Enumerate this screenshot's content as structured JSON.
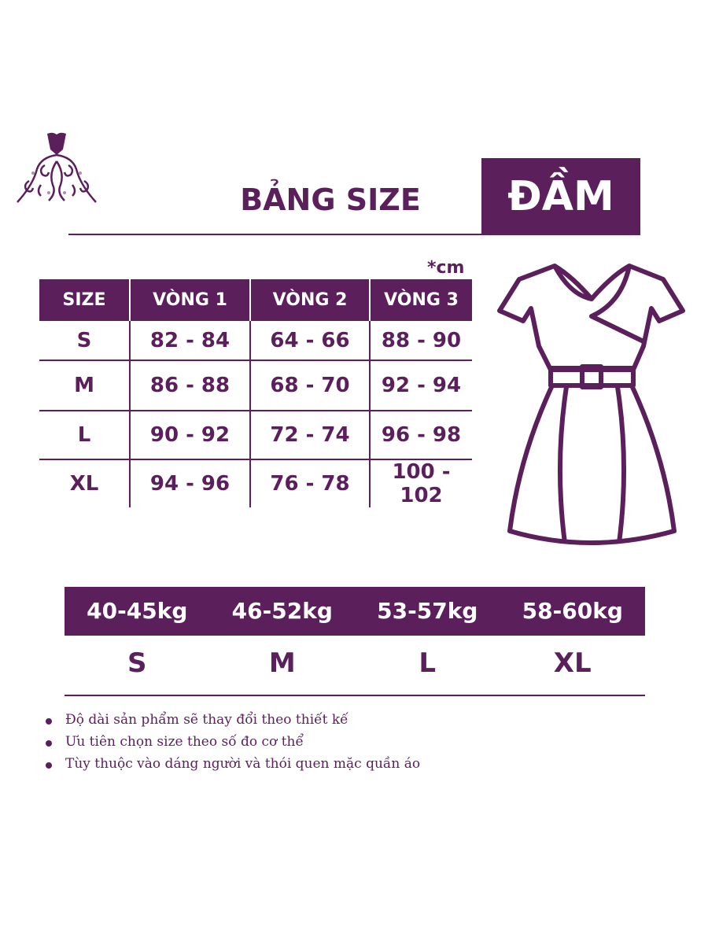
{
  "header": {
    "title": "BẢNG SIZE",
    "product": "ĐẦM",
    "logo_alt": "dress-ornament-logo"
  },
  "unit": "*cm",
  "size_table": {
    "headers": [
      "SIZE",
      "VÒNG 1",
      "VÒNG 2",
      "VÒNG 3"
    ],
    "rows": [
      [
        "S",
        "82 - 84",
        "64 - 66",
        "88 - 90"
      ],
      [
        "M",
        "86 - 88",
        "68 - 70",
        "92 - 94"
      ],
      [
        "L",
        "90 - 92",
        "72 - 74",
        "96 - 98"
      ],
      [
        "XL",
        "94 - 96",
        "76 - 78",
        "100 - 102"
      ]
    ]
  },
  "weight_table": {
    "weights": [
      "40-45kg",
      "46-52kg",
      "53-57kg",
      "58-60kg"
    ],
    "sizes": [
      "S",
      "M",
      "L",
      "XL"
    ]
  },
  "notes": [
    "Độ dài sản phẩm sẽ thay đổi theo thiết kế",
    "Ưu tiên chọn size theo số đo cơ thể",
    "Tùy thuộc vào dáng người và thói quen mặc quần áo"
  ],
  "colors": {
    "brand": "#5b1f5c",
    "background": "#ffffff"
  },
  "icons": {
    "logo": "ornamental-dress-icon",
    "illustration": "dress-outline-icon"
  }
}
